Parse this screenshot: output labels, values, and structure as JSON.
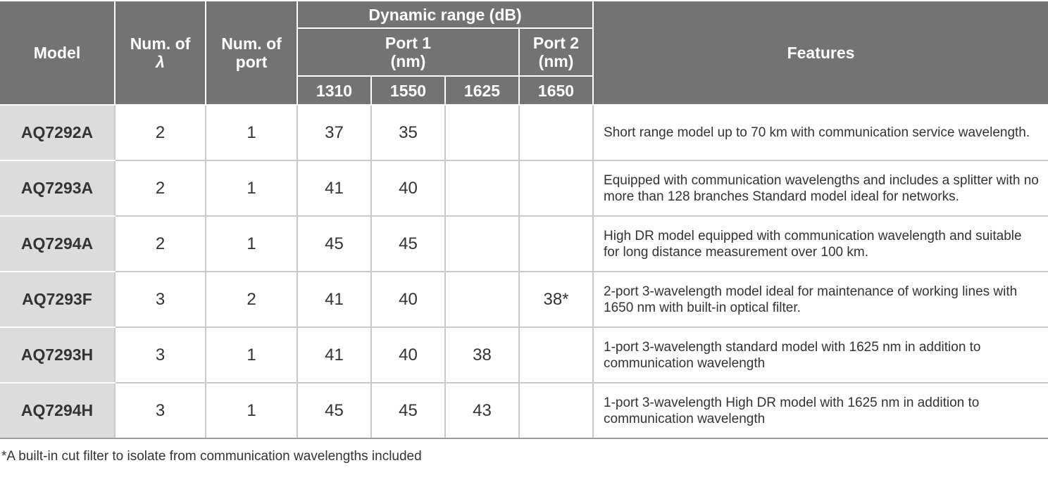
{
  "table": {
    "headers": {
      "model": "Model",
      "num_lambda_line1": "Num. of",
      "num_lambda_symbol": "λ",
      "num_port_line1": "Num. of",
      "num_port_line2": "port",
      "dynamic_range": "Dynamic range (dB)",
      "port1_line1": "Port 1",
      "port1_line2": "(nm)",
      "port2_line1": "Port 2",
      "port2_line2": "(nm)",
      "features": "Features",
      "wavelengths": [
        "1310",
        "1550",
        "1625",
        "1650"
      ]
    },
    "rows": [
      {
        "model": "AQ7292A",
        "lambda": "2",
        "port": "1",
        "d1310": "37",
        "d1550": "35",
        "d1625": "",
        "d1650": "",
        "features": "Short range model up to 70 km with communication service wavelength."
      },
      {
        "model": "AQ7293A",
        "lambda": "2",
        "port": "1",
        "d1310": "41",
        "d1550": "40",
        "d1625": "",
        "d1650": "",
        "features": "Equipped with communication wavelengths and includes a splitter with no more than 128 branches Standard model ideal for networks."
      },
      {
        "model": "AQ7294A",
        "lambda": "2",
        "port": "1",
        "d1310": "45",
        "d1550": "45",
        "d1625": "",
        "d1650": "",
        "features": "High DR model equipped with communication wavelength and suitable for long distance measurement over 100 km."
      },
      {
        "model": "AQ7293F",
        "lambda": "3",
        "port": "2",
        "d1310": "41",
        "d1550": "40",
        "d1625": "",
        "d1650": "38*",
        "features": "2-port 3-wavelength model ideal for maintenance of working lines with 1650 nm with built-in optical filter."
      },
      {
        "model": "AQ7293H",
        "lambda": "3",
        "port": "1",
        "d1310": "41",
        "d1550": "40",
        "d1625": "38",
        "d1650": "",
        "features": "1-port 3-wavelength standard model with 1625 nm in addition to communication wavelength"
      },
      {
        "model": "AQ7294H",
        "lambda": "3",
        "port": "1",
        "d1310": "45",
        "d1550": "45",
        "d1625": "43",
        "d1650": "",
        "features": "1-port 3-wavelength High DR model with 1625 nm in addition to communication wavelength"
      }
    ]
  },
  "footnote": "*A built-in cut filter to isolate from communication wavelengths included",
  "colors": {
    "header_bg": "#737373",
    "model_cell_bg": "#dcdcdc",
    "text": "#333333"
  }
}
